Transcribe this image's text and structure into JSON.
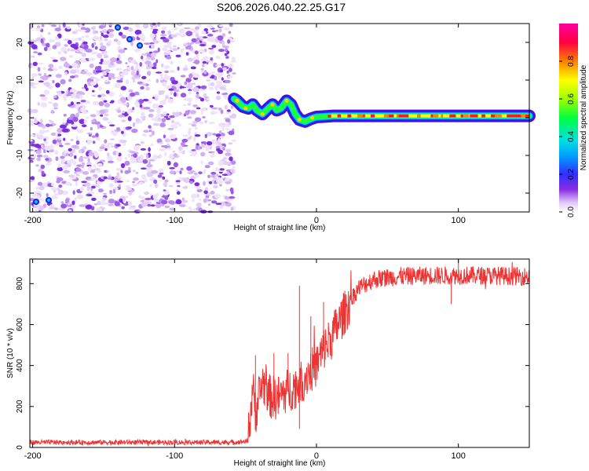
{
  "title": "S206.2026.040.22.25.G17",
  "chart_data": [
    {
      "type": "heatmap",
      "xlabel": "Height of straight line (km)",
      "ylabel": "Frequency (Hz)",
      "xlim": [
        -202,
        150
      ],
      "ylim": [
        -25,
        25
      ],
      "x_ticks": [
        "-200",
        "-100",
        "0",
        "100"
      ],
      "y_ticks": [
        "-20",
        "-10",
        "0",
        "10",
        "20"
      ],
      "noise_region_x": [
        -202,
        -58
      ],
      "ridge": [
        [
          -58,
          5
        ],
        [
          -56,
          4.5
        ],
        [
          -52,
          3
        ],
        [
          -48,
          2.5
        ],
        [
          -45,
          3.5
        ],
        [
          -42,
          2
        ],
        [
          -38,
          1
        ],
        [
          -34,
          2.5
        ],
        [
          -31,
          3.5
        ],
        [
          -28,
          2
        ],
        [
          -25,
          2.5
        ],
        [
          -21,
          4.5
        ],
        [
          -18,
          3.5
        ],
        [
          -15,
          1
        ],
        [
          -12,
          -0.5
        ],
        [
          -8,
          -1
        ],
        [
          -4,
          -0.3
        ],
        [
          0,
          0.2
        ],
        [
          4,
          0.3
        ],
        [
          8,
          0.4
        ],
        [
          12,
          0.5
        ],
        [
          20,
          0.5
        ],
        [
          40,
          0.5
        ],
        [
          60,
          0.5
        ],
        [
          80,
          0.5
        ],
        [
          100,
          0.5
        ],
        [
          120,
          0.5
        ],
        [
          150,
          0.5
        ]
      ],
      "colorbar": {
        "label": "Normalized spectral amplitude",
        "range": [
          0,
          1
        ],
        "ticks": [
          "0.0",
          "0.2",
          "0.4",
          "0.6",
          "0.8"
        ]
      }
    },
    {
      "type": "line",
      "xlabel": "Height of straight line (km)",
      "ylabel": "SNR (10 * v/v)",
      "xlim": [
        -202,
        150
      ],
      "ylim": [
        0,
        920
      ],
      "x_ticks": [
        "-200",
        "-100",
        "0",
        "100"
      ],
      "y_ticks": [
        "0",
        "200",
        "400",
        "600",
        "800"
      ],
      "series": [
        {
          "name": "SNR",
          "color": "#ee3333",
          "x": [
            -202,
            -150,
            -100,
            -60,
            -48,
            -45,
            -43,
            -38,
            -33,
            -28,
            -20,
            -12,
            -5,
            0,
            5,
            10,
            15,
            20,
            25,
            30,
            40,
            50,
            60,
            80,
            100,
            120,
            150
          ],
          "values": [
            25,
            25,
            25,
            25,
            30,
            300,
            170,
            320,
            250,
            240,
            280,
            310,
            370,
            400,
            480,
            530,
            600,
            660,
            730,
            780,
            820,
            830,
            835,
            840,
            840,
            840,
            835
          ],
          "spikes": [
            [
              -43,
              450
            ],
            [
              -30,
              460
            ],
            [
              -20,
              460
            ],
            [
              -12,
              790
            ],
            [
              -12,
              90
            ],
            [
              -4,
              640
            ],
            [
              5,
              710
            ],
            [
              100,
              920
            ],
            [
              95,
              700
            ]
          ]
        }
      ]
    }
  ]
}
